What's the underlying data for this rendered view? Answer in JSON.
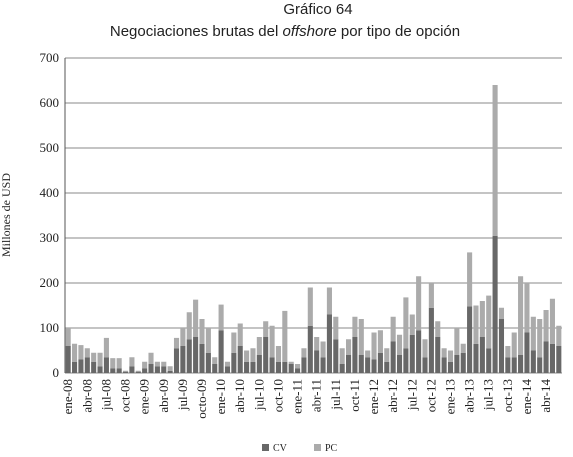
{
  "chart_data": {
    "type": "stacked-bar",
    "title": "Gráfico 64",
    "subtitle": [
      "Negociaciones brutas del ",
      "offshore",
      " por tipo de opción"
    ],
    "y_label": "Millones de USD",
    "categories": [
      "ene-08",
      null,
      null,
      "abr-08",
      null,
      null,
      "jul-08",
      null,
      null,
      "oct-08",
      null,
      null,
      "ene-09",
      null,
      null,
      "abr-09",
      null,
      null,
      "jul-09",
      null,
      null,
      "octo-09",
      null,
      null,
      "ene-10",
      null,
      null,
      "abr-10",
      null,
      null,
      "jul-10",
      null,
      null,
      "oct-10",
      null,
      null,
      "ene-11",
      null,
      null,
      "abr-11",
      null,
      null,
      "jul-11",
      null,
      null,
      "oct-11",
      null,
      null,
      "ene-12",
      null,
      null,
      "abr-12",
      null,
      null,
      "jul-12",
      null,
      null,
      "oct-12",
      null,
      null,
      "ene-13",
      null,
      null,
      "abr-13",
      null,
      null,
      "jul-13",
      null,
      null,
      "oct-13",
      null,
      null,
      "ene-14",
      null,
      null,
      "abr-14",
      null,
      null
    ],
    "series": [
      {
        "name": "CV",
        "color": "#686868",
        "values": [
          60,
          25,
          30,
          35,
          25,
          15,
          35,
          10,
          10,
          3,
          15,
          3,
          10,
          20,
          15,
          15,
          5,
          55,
          60,
          75,
          80,
          65,
          45,
          20,
          95,
          15,
          45,
          60,
          25,
          25,
          40,
          80,
          35,
          25,
          25,
          20,
          10,
          35,
          105,
          50,
          35,
          130,
          75,
          20,
          40,
          80,
          40,
          35,
          30,
          45,
          25,
          70,
          40,
          55,
          85,
          95,
          35,
          145,
          80,
          35,
          25,
          40,
          45,
          148,
          65,
          80,
          55,
          305,
          120,
          35,
          35,
          40,
          90,
          50,
          35,
          70,
          65,
          60
        ]
      },
      {
        "name": "PC",
        "color": "#ababab",
        "values": [
          40,
          40,
          32,
          20,
          20,
          30,
          43,
          23,
          23,
          2,
          20,
          2,
          15,
          25,
          10,
          10,
          10,
          23,
          40,
          60,
          83,
          55,
          55,
          15,
          57,
          10,
          45,
          50,
          25,
          30,
          40,
          35,
          70,
          35,
          113,
          5,
          10,
          20,
          85,
          30,
          35,
          60,
          50,
          35,
          35,
          45,
          80,
          15,
          60,
          50,
          30,
          55,
          45,
          113,
          45,
          120,
          40,
          55,
          35,
          20,
          25,
          60,
          20,
          120,
          85,
          80,
          117,
          335,
          25,
          25,
          55,
          175,
          110,
          75,
          85,
          70,
          100,
          45
        ]
      }
    ],
    "ylim": [
      0,
      700
    ],
    "yticks": [
      0,
      100,
      200,
      300,
      400,
      500,
      600,
      700
    ],
    "grid": true
  }
}
